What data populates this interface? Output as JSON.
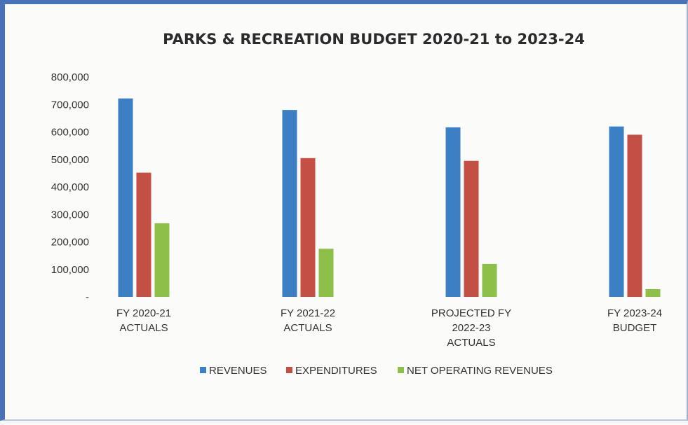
{
  "chart_data": {
    "type": "bar",
    "title": "PARKS & RECREATION BUDGET 2020-21 to 2023-24",
    "categories": [
      [
        "FY 2020-21",
        "ACTUALS"
      ],
      [
        "FY 2021-22",
        "ACTUALS"
      ],
      [
        "PROJECTED FY",
        "2022-23",
        "ACTUALS"
      ],
      [
        "FY 2023-24",
        "BUDGET"
      ]
    ],
    "series": [
      {
        "name": "REVENUES",
        "color": "#3d7fc4",
        "values": [
          722000,
          680000,
          617000,
          620000
        ]
      },
      {
        "name": "EXPENDITURES",
        "color": "#c44f45",
        "values": [
          452000,
          505000,
          495000,
          590000
        ]
      },
      {
        "name": "NET OPERATING REVENUES",
        "color": "#8ebf48",
        "values": [
          268000,
          175000,
          120000,
          28000
        ]
      }
    ],
    "ylim": [
      0,
      800000
    ],
    "yticks": [
      "-",
      "100,000",
      "200,000",
      "300,000",
      "400,000",
      "500,000",
      "600,000",
      "700,000",
      "800,000"
    ],
    "grid": false,
    "legend_position": "bottom"
  }
}
